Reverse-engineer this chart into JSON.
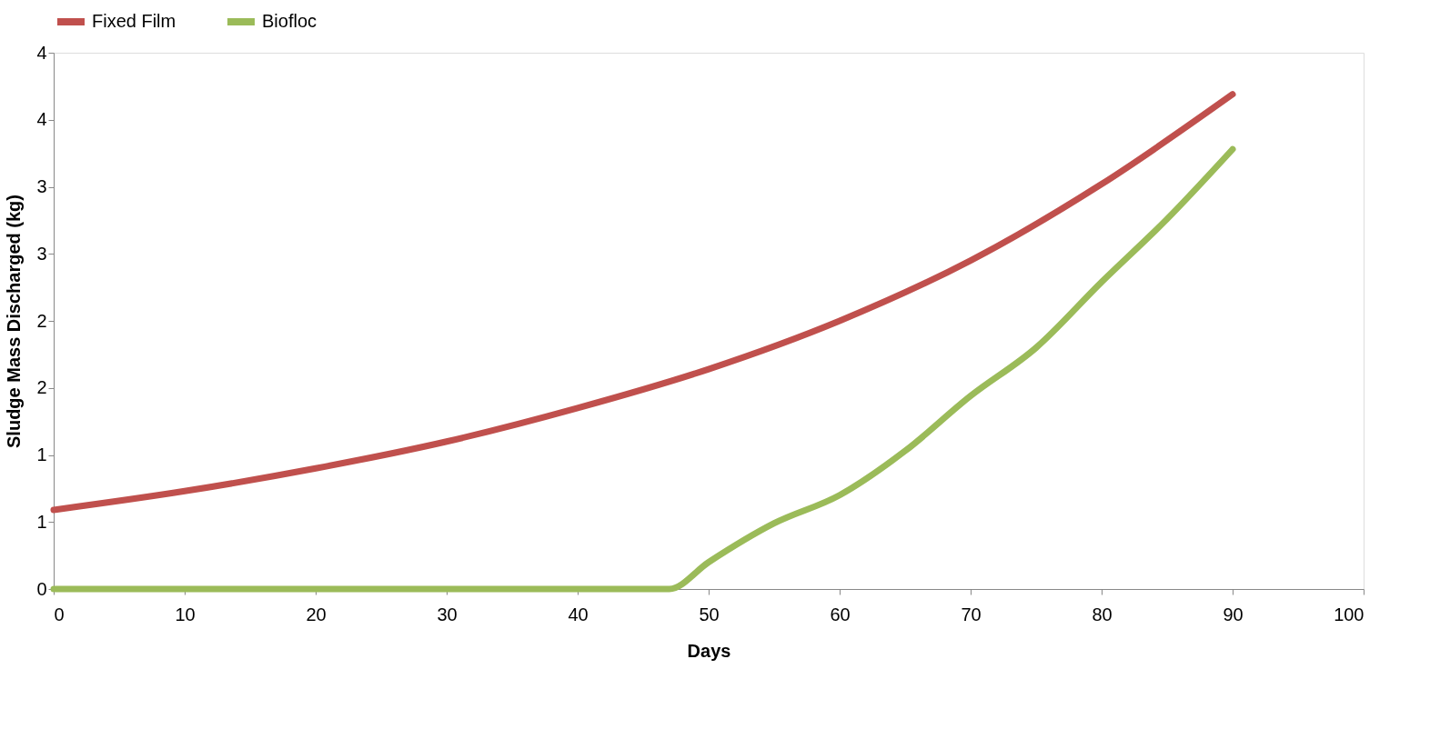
{
  "chart_data": {
    "type": "line",
    "xlabel": "Days",
    "ylabel": "Sludge Mass Discharged (kg)",
    "xlim": [
      0,
      100
    ],
    "xticks": [
      0,
      10,
      20,
      30,
      40,
      50,
      60,
      70,
      80,
      90,
      100
    ],
    "ylim": [
      0,
      4
    ],
    "yticks": [
      0,
      {
        "value": 0.5,
        "label": "1"
      },
      1,
      {
        "value": 1.5,
        "label": "2"
      },
      2,
      {
        "value": 2.5,
        "label": "3"
      },
      3,
      {
        "value": 3.5,
        "label": "4"
      },
      4
    ],
    "grid": false,
    "legend": "top",
    "marker": "none",
    "line_style": "solid",
    "series": [
      {
        "name": "Fixed Film",
        "color": "#c0504d",
        "x": [
          0,
          10,
          20,
          30,
          40,
          50,
          60,
          70,
          80,
          90
        ],
        "values": [
          0.59,
          0.73,
          0.9,
          1.1,
          1.35,
          1.64,
          2.0,
          2.45,
          3.02,
          3.69
        ]
      },
      {
        "name": "Biofloc",
        "color": "#9bbb59",
        "x": [
          0,
          10,
          20,
          30,
          40,
          47,
          50,
          55,
          60,
          65,
          70,
          75,
          80,
          85,
          90
        ],
        "values": [
          0,
          0,
          0,
          0,
          0,
          0,
          0.2,
          0.49,
          0.7,
          1.03,
          1.44,
          1.8,
          2.29,
          2.76,
          3.28
        ]
      }
    ]
  }
}
